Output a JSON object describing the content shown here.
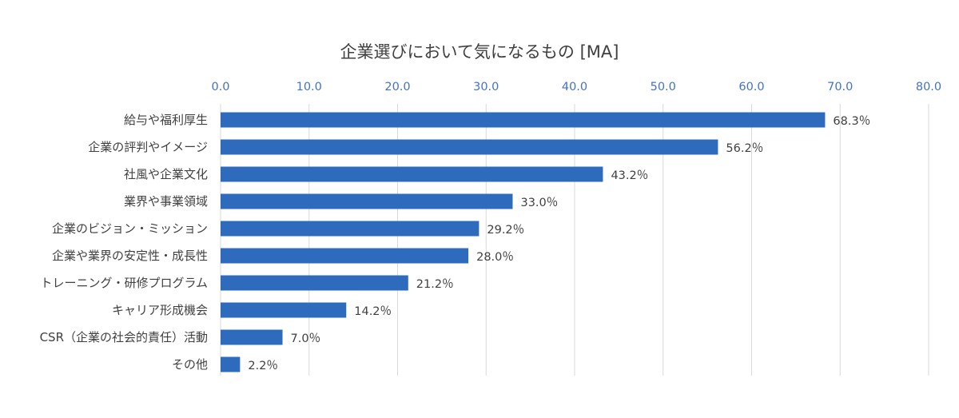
{
  "chart_data": {
    "type": "bar",
    "orientation": "horizontal",
    "title": "企業選びにおいて気になるもの [MA]",
    "xlabel": "",
    "ylabel": "",
    "xlim": [
      0,
      80
    ],
    "x_ticks": [
      "0.0",
      "10.0",
      "20.0",
      "30.0",
      "40.0",
      "50.0",
      "60.0",
      "70.0",
      "80.0"
    ],
    "x_axis_position": "top",
    "grid": true,
    "legend": false,
    "bar_color": "#2e6bbd",
    "categories": [
      "給与や福利厚生",
      "企業の評判やイメージ",
      "社風や企業文化",
      "業界や事業領域",
      "企業のビジョン・ミッション",
      "企業や業界の安定性・成長性",
      "トレーニング・研修プログラム",
      "キャリア形成機会",
      "CSR（企業の社会的責任）活動",
      "その他"
    ],
    "values": [
      68.3,
      56.2,
      43.2,
      33.0,
      29.2,
      28.0,
      21.2,
      14.2,
      7.0,
      2.2
    ],
    "data_labels": [
      "68.3％",
      "56.2％",
      "43.2％",
      "33.0％",
      "29.2％",
      "28.0％",
      "21.2％",
      "14.2％",
      "7.0％",
      "2.2％"
    ]
  }
}
